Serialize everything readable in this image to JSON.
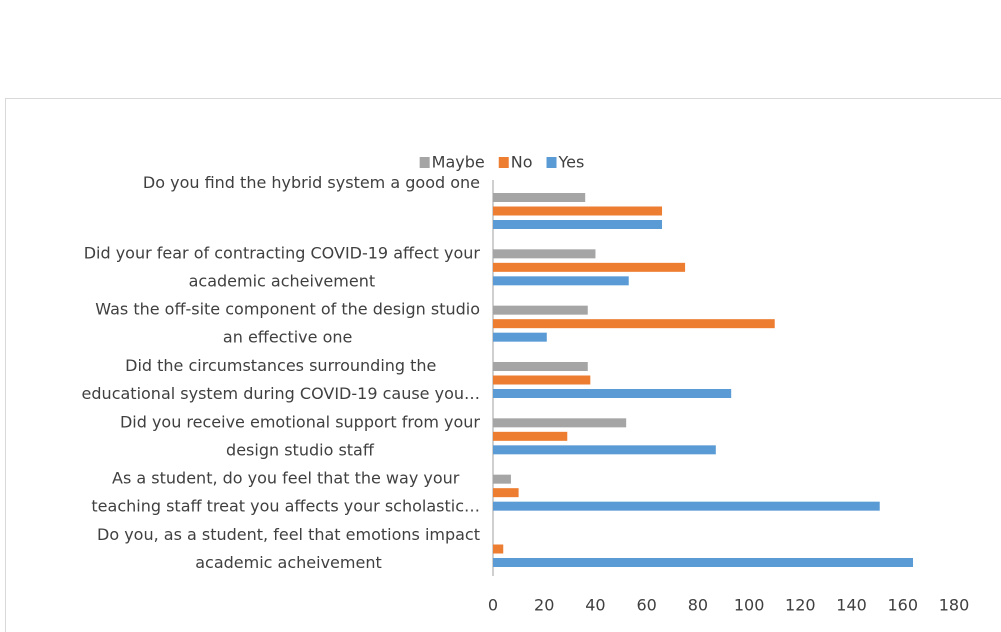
{
  "chart_data": {
    "type": "hbar",
    "categories": [
      "Do you find the hybrid system a good one",
      "Did your fear of contracting COVID-19 affect your\nacademic acheivement",
      "Was the off-site component of the design studio\nan effective one",
      "Did the circumstances surrounding the\neducational system during COVID-19 cause you…",
      "Did you receive emotional support from your\ndesign studio staff",
      "As a student, do you feel that the way your\nteaching staff treat you affects your scholastic…",
      "Do you, as a student, feel that emotions impact\nacademic acheivement"
    ],
    "series": [
      {
        "name": "Maybe",
        "color": "#a5a5a5",
        "values": [
          36,
          40,
          37,
          37,
          52,
          7,
          0
        ]
      },
      {
        "name": "No",
        "color": "#ed7d31",
        "values": [
          66,
          75,
          110,
          38,
          29,
          10,
          4
        ]
      },
      {
        "name": "Yes",
        "color": "#5b9bd5",
        "values": [
          66,
          53,
          21,
          93,
          87,
          151,
          164
        ]
      }
    ],
    "xlim": [
      0,
      180
    ],
    "xticks": [
      0,
      20,
      40,
      60,
      80,
      100,
      120,
      140,
      160,
      180
    ],
    "legend": "top"
  }
}
